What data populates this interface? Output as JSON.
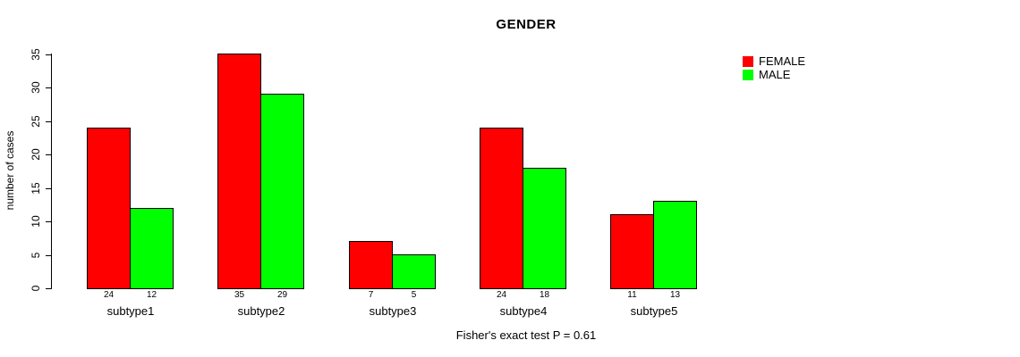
{
  "chart_data": {
    "type": "bar",
    "title": "GENDER",
    "ylabel": "number of cases",
    "xlabel": "",
    "categories": [
      "subtype1",
      "subtype2",
      "subtype3",
      "subtype4",
      "subtype5"
    ],
    "series": [
      {
        "name": "FEMALE",
        "color": "#ff0000",
        "values": [
          24,
          35,
          7,
          24,
          11
        ]
      },
      {
        "name": "MALE",
        "color": "#00ff00",
        "values": [
          12,
          29,
          5,
          18,
          13
        ]
      }
    ],
    "yticks": [
      0,
      5,
      10,
      15,
      20,
      25,
      30,
      35
    ],
    "ylim": [
      0,
      35
    ],
    "bar_value_labels": [
      [
        24,
        12
      ],
      [
        35,
        29
      ],
      [
        7,
        5
      ],
      [
        24,
        18
      ],
      [
        11,
        13
      ]
    ],
    "legend": {
      "position": "top-right",
      "entries": [
        {
          "label": "FEMALE",
          "color": "#ff0000"
        },
        {
          "label": "MALE",
          "color": "#00ff00"
        }
      ]
    },
    "grid": false,
    "caption": "Fisher's exact test P = 0.61"
  },
  "colors": {
    "background": "#ffffff",
    "axis": "#000000",
    "female": "#ff0000",
    "male": "#00ff00"
  }
}
